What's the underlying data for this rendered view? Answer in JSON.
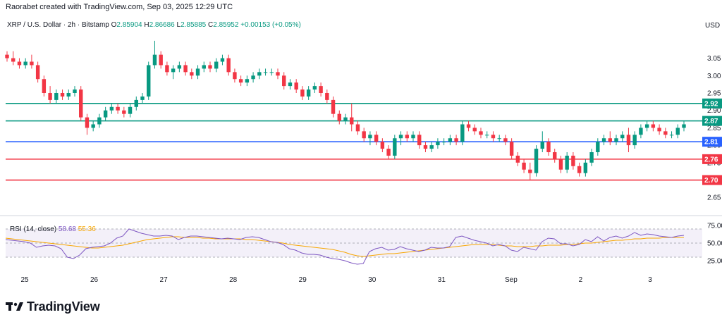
{
  "header": {
    "text": "Raorabet created with TradingView.com, Sep 03, 2025 12:29 UTC"
  },
  "legend": {
    "symbol": "XRP / U.S. Dollar · 2h · Bitstamp",
    "open_label": "O",
    "open": "2.85904",
    "high_label": "H",
    "high": "2.86686",
    "low_label": "L",
    "low": "2.85885",
    "close_label": "C",
    "close": "2.85952",
    "change": "+0.00153 (+0.05%)"
  },
  "currency": "USD",
  "rsi": {
    "label": "RSI (14, close)",
    "value": "58.68",
    "ma_value": "55.36"
  },
  "brand": {
    "name": "TradingView"
  },
  "colors": {
    "up": "#089981",
    "down": "#f23645",
    "blue_line": "#2962ff",
    "green_line": "#089981",
    "red_line": "#f23645",
    "rsi": "#7e57c2",
    "rsi_ma": "#f7a600",
    "band": "#7e57c2"
  },
  "chart_data": {
    "type": "candlestick",
    "timeframe": "2h",
    "x_ticks": [
      "25",
      "26",
      "27",
      "28",
      "29",
      "30",
      "31",
      "Sep",
      "2",
      "3"
    ],
    "y_ticks": [
      "3.05",
      "3.00",
      "2.95",
      "2.90",
      "2.85",
      "2.80",
      "2.75",
      "2.70",
      "2.65"
    ],
    "ylim": [
      2.61,
      3.12
    ],
    "horizontal_levels": [
      {
        "value": 2.92,
        "label": "2.92",
        "color": "#089981"
      },
      {
        "value": 2.87,
        "label": "2.87",
        "color": "#089981"
      },
      {
        "value": 2.81,
        "label": "2.81",
        "color": "#2962ff"
      },
      {
        "value": 2.76,
        "label": "2.76",
        "color": "#f23645"
      },
      {
        "value": 2.7,
        "label": "2.70",
        "color": "#f23645"
      }
    ],
    "candles": [
      [
        3.06,
        3.07,
        3.04,
        3.05
      ],
      [
        3.05,
        3.07,
        3.03,
        3.04
      ],
      [
        3.04,
        3.05,
        3.02,
        3.03
      ],
      [
        3.03,
        3.05,
        3.02,
        3.04
      ],
      [
        3.04,
        3.06,
        3.02,
        3.03
      ],
      [
        3.03,
        3.04,
        2.98,
        2.99
      ],
      [
        2.99,
        3.0,
        2.94,
        2.95
      ],
      [
        2.95,
        2.97,
        2.92,
        2.93
      ],
      [
        2.93,
        2.96,
        2.92,
        2.95
      ],
      [
        2.95,
        2.96,
        2.93,
        2.94
      ],
      [
        2.94,
        2.96,
        2.93,
        2.95
      ],
      [
        2.95,
        2.97,
        2.94,
        2.96
      ],
      [
        2.96,
        2.97,
        2.87,
        2.88
      ],
      [
        2.88,
        2.89,
        2.83,
        2.85
      ],
      [
        2.85,
        2.87,
        2.84,
        2.86
      ],
      [
        2.86,
        2.89,
        2.85,
        2.88
      ],
      [
        2.88,
        2.91,
        2.87,
        2.9
      ],
      [
        2.9,
        2.92,
        2.89,
        2.91
      ],
      [
        2.91,
        2.92,
        2.89,
        2.9
      ],
      [
        2.9,
        2.91,
        2.88,
        2.89
      ],
      [
        2.89,
        2.92,
        2.88,
        2.91
      ],
      [
        2.91,
        2.94,
        2.9,
        2.93
      ],
      [
        2.93,
        2.95,
        2.92,
        2.94
      ],
      [
        2.94,
        3.04,
        2.93,
        3.03
      ],
      [
        3.03,
        3.1,
        3.02,
        3.06
      ],
      [
        3.06,
        3.07,
        3.02,
        3.03
      ],
      [
        3.03,
        3.04,
        3.0,
        3.01
      ],
      [
        3.01,
        3.03,
        2.99,
        3.02
      ],
      [
        3.02,
        3.04,
        3.01,
        3.03
      ],
      [
        3.03,
        3.04,
        3.0,
        3.01
      ],
      [
        3.01,
        3.02,
        2.99,
        3.0
      ],
      [
        3.0,
        3.03,
        2.99,
        3.02
      ],
      [
        3.02,
        3.04,
        3.01,
        3.03
      ],
      [
        3.03,
        3.04,
        3.01,
        3.02
      ],
      [
        3.02,
        3.05,
        3.01,
        3.04
      ],
      [
        3.04,
        3.06,
        3.03,
        3.05
      ],
      [
        3.05,
        3.06,
        3.0,
        3.01
      ],
      [
        3.01,
        3.02,
        2.98,
        2.99
      ],
      [
        2.99,
        3.0,
        2.97,
        2.98
      ],
      [
        2.98,
        3.0,
        2.97,
        2.99
      ],
      [
        2.99,
        3.01,
        2.98,
        3.0
      ],
      [
        3.0,
        3.02,
        2.99,
        3.01
      ],
      [
        3.01,
        3.02,
        3.0,
        3.01
      ],
      [
        3.01,
        3.02,
        3.0,
        3.01
      ],
      [
        3.01,
        3.02,
        2.99,
        3.0
      ],
      [
        3.0,
        3.01,
        2.96,
        2.97
      ],
      [
        2.97,
        2.99,
        2.96,
        2.98
      ],
      [
        2.98,
        2.99,
        2.95,
        2.96
      ],
      [
        2.96,
        2.97,
        2.93,
        2.94
      ],
      [
        2.94,
        2.97,
        2.93,
        2.96
      ],
      [
        2.96,
        2.98,
        2.95,
        2.97
      ],
      [
        2.97,
        2.98,
        2.94,
        2.95
      ],
      [
        2.95,
        2.96,
        2.92,
        2.93
      ],
      [
        2.93,
        2.94,
        2.88,
        2.89
      ],
      [
        2.89,
        2.9,
        2.86,
        2.87
      ],
      [
        2.87,
        2.89,
        2.86,
        2.88
      ],
      [
        2.88,
        2.92,
        2.84,
        2.86
      ],
      [
        2.86,
        2.87,
        2.83,
        2.84
      ],
      [
        2.84,
        2.85,
        2.81,
        2.82
      ],
      [
        2.82,
        2.84,
        2.8,
        2.83
      ],
      [
        2.83,
        2.84,
        2.8,
        2.81
      ],
      [
        2.81,
        2.82,
        2.78,
        2.79
      ],
      [
        2.79,
        2.8,
        2.76,
        2.77
      ],
      [
        2.77,
        2.83,
        2.76,
        2.82
      ],
      [
        2.82,
        2.84,
        2.8,
        2.83
      ],
      [
        2.83,
        2.84,
        2.81,
        2.82
      ],
      [
        2.82,
        2.84,
        2.81,
        2.83
      ],
      [
        2.83,
        2.84,
        2.79,
        2.8
      ],
      [
        2.8,
        2.81,
        2.78,
        2.79
      ],
      [
        2.79,
        2.81,
        2.78,
        2.8
      ],
      [
        2.8,
        2.82,
        2.79,
        2.81
      ],
      [
        2.81,
        2.82,
        2.8,
        2.81
      ],
      [
        2.81,
        2.83,
        2.8,
        2.82
      ],
      [
        2.82,
        2.83,
        2.8,
        2.81
      ],
      [
        2.81,
        2.87,
        2.8,
        2.86
      ],
      [
        2.86,
        2.87,
        2.84,
        2.85
      ],
      [
        2.85,
        2.86,
        2.83,
        2.84
      ],
      [
        2.84,
        2.85,
        2.82,
        2.83
      ],
      [
        2.83,
        2.84,
        2.82,
        2.83
      ],
      [
        2.83,
        2.84,
        2.81,
        2.82
      ],
      [
        2.82,
        2.83,
        2.81,
        2.82
      ],
      [
        2.82,
        2.83,
        2.8,
        2.81
      ],
      [
        2.81,
        2.82,
        2.76,
        2.77
      ],
      [
        2.77,
        2.78,
        2.74,
        2.75
      ],
      [
        2.75,
        2.76,
        2.72,
        2.73
      ],
      [
        2.73,
        2.75,
        2.7,
        2.72
      ],
      [
        2.72,
        2.8,
        2.71,
        2.79
      ],
      [
        2.79,
        2.84,
        2.78,
        2.81
      ],
      [
        2.81,
        2.82,
        2.77,
        2.78
      ],
      [
        2.78,
        2.79,
        2.75,
        2.76
      ],
      [
        2.76,
        2.77,
        2.72,
        2.73
      ],
      [
        2.73,
        2.78,
        2.72,
        2.77
      ],
      [
        2.77,
        2.78,
        2.73,
        2.74
      ],
      [
        2.74,
        2.75,
        2.71,
        2.72
      ],
      [
        2.72,
        2.76,
        2.71,
        2.75
      ],
      [
        2.75,
        2.79,
        2.74,
        2.78
      ],
      [
        2.78,
        2.82,
        2.77,
        2.81
      ],
      [
        2.81,
        2.83,
        2.8,
        2.82
      ],
      [
        2.82,
        2.84,
        2.8,
        2.81
      ],
      [
        2.81,
        2.83,
        2.8,
        2.82
      ],
      [
        2.82,
        2.84,
        2.81,
        2.83
      ],
      [
        2.83,
        2.85,
        2.78,
        2.8
      ],
      [
        2.8,
        2.84,
        2.79,
        2.83
      ],
      [
        2.83,
        2.86,
        2.82,
        2.85
      ],
      [
        2.85,
        2.87,
        2.84,
        2.86
      ],
      [
        2.86,
        2.87,
        2.84,
        2.85
      ],
      [
        2.85,
        2.86,
        2.83,
        2.84
      ],
      [
        2.84,
        2.85,
        2.82,
        2.83
      ],
      [
        2.83,
        2.84,
        2.82,
        2.83
      ],
      [
        2.83,
        2.86,
        2.82,
        2.85
      ],
      [
        2.85,
        2.87,
        2.84,
        2.86
      ]
    ],
    "rsi": {
      "name": "RSI (14, close)",
      "ylim": [
        15,
        85
      ],
      "ticks": [
        "75.00",
        "50.00",
        "25.00"
      ],
      "upper_band": 70,
      "lower_band": 30,
      "rsi_values": [
        55,
        54,
        53,
        52,
        50,
        44,
        46,
        47,
        46,
        42,
        30,
        28,
        33,
        42,
        44,
        45,
        46,
        50,
        57,
        60,
        70,
        67,
        64,
        62,
        60,
        60,
        61,
        60,
        55,
        58,
        60,
        60,
        59,
        58,
        57,
        56,
        57,
        56,
        55,
        58,
        59,
        58,
        55,
        52,
        51,
        48,
        42,
        40,
        36,
        34,
        34,
        33,
        30,
        28,
        27,
        25,
        22,
        20,
        21,
        38,
        42,
        44,
        40,
        41,
        45,
        42,
        40,
        38,
        40,
        44,
        43,
        43,
        45,
        58,
        60,
        57,
        54,
        52,
        50,
        46,
        48,
        46,
        40,
        38,
        44,
        42,
        40,
        52,
        57,
        56,
        49,
        49,
        46,
        48,
        55,
        52,
        59,
        53,
        58,
        60,
        57,
        60,
        65,
        61,
        63,
        62,
        60,
        59,
        58,
        60,
        61
      ],
      "ma_values": [
        57,
        56,
        55,
        54,
        53,
        52,
        51,
        50,
        49,
        48,
        47,
        46,
        45,
        44,
        43,
        43,
        44,
        45,
        46,
        47,
        49,
        51,
        53,
        55,
        56,
        57,
        58,
        59,
        59,
        58,
        58,
        58,
        57,
        57,
        56,
        56,
        56,
        56,
        56,
        55,
        55,
        54,
        53,
        52,
        51,
        50,
        48,
        47,
        46,
        45,
        44,
        43,
        42,
        41,
        39,
        37,
        34,
        32,
        31,
        32,
        33,
        34,
        35,
        35,
        36,
        37,
        38,
        39,
        40,
        41,
        42,
        43,
        44,
        45,
        46,
        47,
        48,
        48,
        48,
        48,
        47,
        46,
        46,
        45,
        45,
        45,
        46,
        46,
        47,
        47,
        47,
        48,
        48,
        49,
        50,
        50,
        51,
        52,
        53,
        54,
        54,
        55,
        56,
        56,
        57,
        57,
        57,
        58,
        58,
        58,
        58
      ]
    }
  }
}
